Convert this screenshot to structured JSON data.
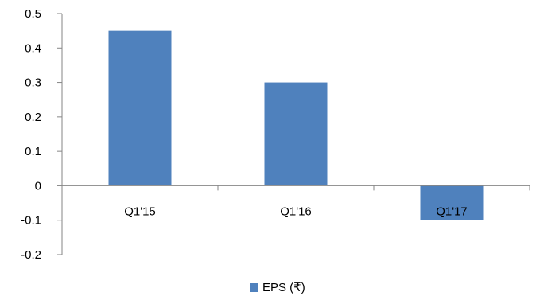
{
  "chart_data": {
    "type": "bar",
    "categories": [
      "Q1'15",
      "Q1'16",
      "Q1'17"
    ],
    "series": [
      {
        "name": "EPS (₹)",
        "values": [
          0.45,
          0.3,
          -0.1
        ]
      }
    ],
    "ylim": [
      -0.2,
      0.5
    ],
    "yticks": [
      "0.5",
      "0.4",
      "0.3",
      "0.2",
      "0.1",
      "0",
      "-0.1",
      "-0.2"
    ],
    "grid": false,
    "legend_position": "bottom",
    "bar_color": "#4F81BD",
    "axis_color": "#868686"
  }
}
